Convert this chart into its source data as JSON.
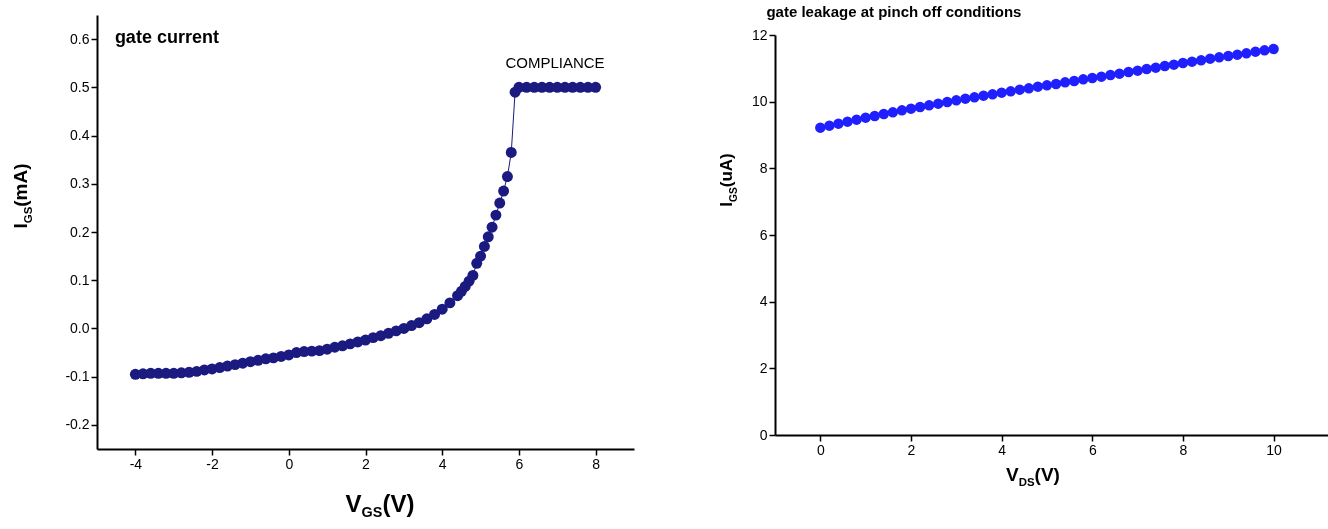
{
  "chart_data": [
    {
      "type": "line",
      "title": "gate current",
      "xlabel": "V$_{GS}$(V)",
      "ylabel": "I$_{GS}$(mA)",
      "marker": "circle",
      "xlim": [
        -5,
        9
      ],
      "ylim": [
        -0.25,
        0.65
      ],
      "xticks": [
        -4,
        -2,
        0,
        2,
        4,
        6,
        8
      ],
      "yticks": [
        -0.2,
        -0.1,
        {
          "value": 0,
          "label": "0.0"
        },
        0.1,
        0.2,
        0.3,
        0.4,
        0.5,
        0.6
      ],
      "x": [
        -4,
        -3.8,
        -3.6,
        -3.4,
        -3.2,
        -3,
        -2.8,
        -2.6,
        -2.4,
        -2.2,
        -2,
        -1.8,
        -1.6,
        -1.4,
        -1.2,
        -1,
        -0.8,
        -0.6,
        -0.4,
        -0.2,
        0,
        0.2,
        0.4,
        0.6,
        0.8,
        1,
        1.2,
        1.4,
        1.6,
        1.8,
        2,
        2.2,
        2.4,
        2.6,
        2.8,
        3,
        3.2,
        3.4,
        3.6,
        3.8,
        4,
        4.2,
        4.4,
        4.5,
        4.6,
        4.7,
        4.8,
        4.9,
        5,
        5.1,
        5.2,
        5.3,
        5.4,
        5.5,
        5.6,
        5.7,
        5.8,
        5.9,
        6,
        6.2,
        6.4,
        6.6,
        6.8,
        7,
        7.2,
        7.4,
        7.6,
        7.8,
        8
      ],
      "series": [
        {
          "color": "#1a1a80",
          "values": [
            -0.095,
            -0.094,
            -0.093,
            -0.093,
            -0.093,
            -0.093,
            -0.092,
            -0.091,
            -0.089,
            -0.086,
            -0.084,
            -0.081,
            -0.078,
            -0.075,
            -0.072,
            -0.069,
            -0.066,
            -0.063,
            -0.061,
            -0.058,
            -0.055,
            -0.05,
            -0.048,
            -0.047,
            -0.046,
            -0.043,
            -0.039,
            -0.036,
            -0.032,
            -0.028,
            -0.024,
            -0.019,
            -0.015,
            -0.01,
            -0.005,
            0.0,
            0.006,
            0.012,
            0.02,
            0.029,
            0.04,
            0.053,
            0.068,
            0.077,
            0.087,
            0.098,
            0.11,
            0.135,
            0.15,
            0.17,
            0.19,
            0.21,
            0.235,
            0.26,
            0.285,
            0.315,
            0.365,
            0.49,
            0.5,
            0.5,
            0.5,
            0.5,
            0.5,
            0.5,
            0.5,
            0.5,
            0.5,
            0.5,
            0.5
          ]
        }
      ],
      "annotations": [
        "COMPLIANCE"
      ]
    },
    {
      "type": "scatter",
      "title": "gate leakage at pinch off conditions",
      "xlabel": "V$_{DS}$(V)",
      "ylabel": "I$_{GS}$(uA)",
      "marker": "circle",
      "xlim": [
        -1,
        11.2
      ],
      "ylim": [
        0,
        12
      ],
      "xticks": [
        0,
        2,
        4,
        6,
        8,
        10
      ],
      "yticks": [
        0,
        2,
        4,
        6,
        8,
        10,
        12
      ],
      "x": [
        0,
        0.2,
        0.4,
        0.6,
        0.8,
        1,
        1.2,
        1.4,
        1.6,
        1.8,
        2,
        2.2,
        2.4,
        2.6,
        2.8,
        3,
        3.2,
        3.4,
        3.6,
        3.8,
        4,
        4.2,
        4.4,
        4.6,
        4.8,
        5,
        5.2,
        5.4,
        5.6,
        5.8,
        6,
        6.2,
        6.4,
        6.6,
        6.8,
        7,
        7.2,
        7.4,
        7.6,
        7.8,
        8,
        8.2,
        8.4,
        8.6,
        8.8,
        9,
        9.2,
        9.4,
        9.6,
        9.8,
        10
      ],
      "series": [
        {
          "color": "#1f1fff",
          "values": [
            9.22,
            9.28,
            9.34,
            9.4,
            9.46,
            9.52,
            9.57,
            9.63,
            9.68,
            9.74,
            9.79,
            9.84,
            9.89,
            9.94,
            9.99,
            10.04,
            10.09,
            10.13,
            10.18,
            10.22,
            10.27,
            10.31,
            10.36,
            10.4,
            10.45,
            10.49,
            10.53,
            10.58,
            10.62,
            10.67,
            10.71,
            10.75,
            10.8,
            10.84,
            10.89,
            10.93,
            10.98,
            11.02,
            11.07,
            11.11,
            11.16,
            11.2,
            11.24,
            11.29,
            11.33,
            11.37,
            11.41,
            11.45,
            11.5,
            11.54,
            11.58
          ]
        }
      ]
    }
  ]
}
